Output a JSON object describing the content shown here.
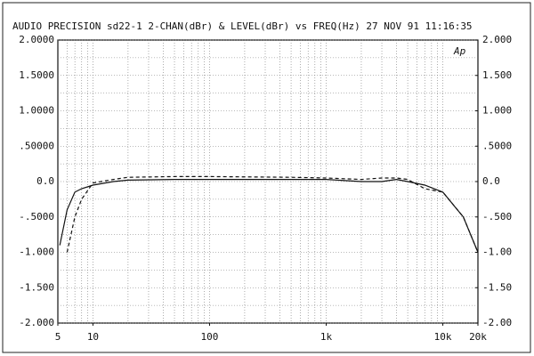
{
  "chart_data": {
    "type": "line",
    "title": "AUDIO PRECISION sd22-1 2-CHAN(dBr) & LEVEL(dBr) vs FREQ(Hz)  27 NOV 91 11:16:35",
    "logo": "Ap",
    "x": [
      5.2,
      6,
      7,
      8,
      10,
      15,
      20,
      50,
      100,
      500,
      1000,
      2000,
      3000,
      4000,
      5000,
      7000,
      10000,
      15000,
      20000
    ],
    "series": [
      {
        "name": "2-CHAN",
        "color": "#111",
        "dash": false,
        "values": [
          -0.9,
          -0.4,
          -0.15,
          -0.1,
          -0.05,
          0.0,
          0.02,
          0.03,
          0.03,
          0.03,
          0.03,
          0.0,
          0.0,
          0.03,
          0.0,
          -0.05,
          -0.15,
          -0.5,
          -1.0
        ]
      },
      {
        "name": "LEVEL",
        "color": "#111",
        "dash": true,
        "values": [
          null,
          -1.0,
          -0.5,
          -0.25,
          -0.02,
          0.03,
          0.06,
          0.07,
          0.07,
          0.06,
          0.05,
          0.03,
          0.05,
          0.05,
          0.03,
          -0.1,
          -0.15,
          -0.5,
          -1.0
        ]
      }
    ],
    "xlog": true,
    "xlim": [
      5,
      20000
    ],
    "xticks": [
      5,
      10,
      100,
      {
        "value": 1000,
        "label": "1k"
      },
      {
        "value": 10000,
        "label": "10k"
      },
      {
        "value": 20000,
        "label": "20k"
      }
    ],
    "ylim": [
      -2,
      2
    ],
    "yticks": [
      {
        "value": 2,
        "label": "2.0000"
      },
      {
        "value": 1.5,
        "label": "1.5000"
      },
      {
        "value": 1,
        "label": "1.0000"
      },
      {
        "value": 0.5,
        "label": ".50000"
      },
      {
        "value": 0,
        "label": "0.0"
      },
      {
        "value": -0.5,
        "label": "-.5000"
      },
      {
        "value": -1,
        "label": "-1.000"
      },
      {
        "value": -1.5,
        "label": "-1.500"
      },
      {
        "value": -2,
        "label": "-2.000"
      }
    ],
    "y2lim": [
      -2,
      2
    ],
    "y2ticks": [
      {
        "value": 2,
        "label": "2.000"
      },
      {
        "value": 1.5,
        "label": "1.500"
      },
      {
        "value": 1,
        "label": "1.000"
      },
      {
        "value": 0.5,
        "label": ".5000"
      },
      {
        "value": 0,
        "label": "0.0"
      },
      {
        "value": -0.5,
        "label": "-.500"
      },
      {
        "value": -1,
        "label": "-1.00"
      },
      {
        "value": -1.5,
        "label": "-1.50"
      },
      {
        "value": -2,
        "label": "-2.00"
      }
    ],
    "grid": true
  }
}
